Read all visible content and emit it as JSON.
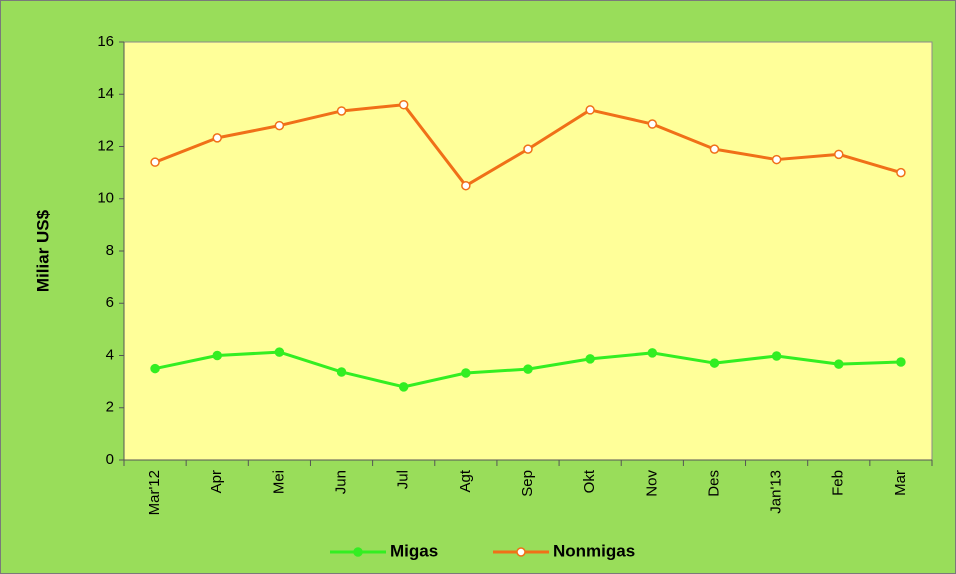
{
  "chart_data": {
    "type": "line",
    "ylabel": "Miliar US$",
    "categories": [
      "Mar'12",
      "Apr",
      "Mei",
      "Jun",
      "Jul",
      "Agt",
      "Sep",
      "Okt",
      "Nov",
      "Des",
      "Jan'13",
      "Feb",
      "Mar"
    ],
    "series": [
      {
        "name": "Migas",
        "color": "#33ee22",
        "values": [
          3.5,
          4.0,
          4.13,
          3.37,
          2.8,
          3.33,
          3.48,
          3.87,
          4.1,
          3.71,
          3.98,
          3.67,
          3.75
        ]
      },
      {
        "name": "Nonmigas",
        "color": "#f07018",
        "values": [
          11.4,
          12.33,
          12.8,
          13.36,
          13.6,
          10.5,
          11.9,
          13.4,
          12.86,
          11.9,
          11.5,
          11.7,
          11.0
        ]
      }
    ],
    "ylim": [
      0,
      16
    ],
    "yticks": [
      0,
      2,
      4,
      6,
      8,
      10,
      12,
      14,
      16
    ],
    "legend": "bottom"
  }
}
